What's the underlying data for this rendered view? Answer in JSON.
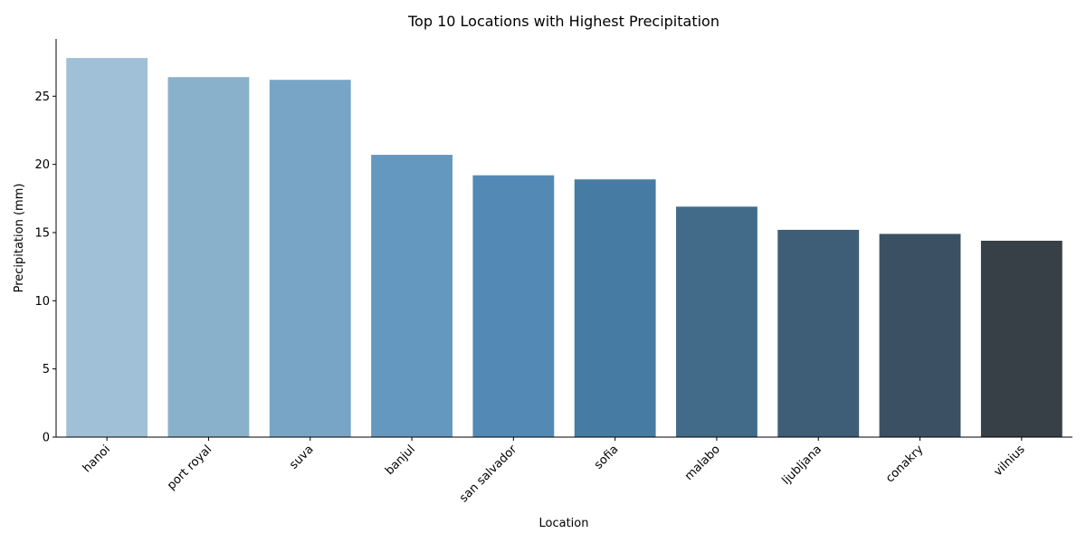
{
  "chart_data": {
    "type": "bar",
    "title": "Top 10 Locations with Highest Precipitation",
    "xlabel": "Location",
    "ylabel": "Precipitation (mm)",
    "categories": [
      "hanoi",
      "port royal",
      "suva",
      "banjul",
      "san salvador",
      "sofia",
      "malabo",
      "ljubljana",
      "conakry",
      "vilnius"
    ],
    "values": [
      27.8,
      26.4,
      26.2,
      20.7,
      19.2,
      18.9,
      16.9,
      15.2,
      14.9,
      14.4
    ],
    "colors": [
      "#9fc0d6",
      "#8ab1cc",
      "#78a5c6",
      "#6598be",
      "#538ab5",
      "#467ca3",
      "#426b8a",
      "#3e5d77",
      "#3b5063",
      "#373f47"
    ],
    "ylim": [
      0,
      29.2
    ],
    "yticks": [
      0,
      5,
      10,
      15,
      20,
      25
    ],
    "ytick_labels": [
      "0",
      "5",
      "10",
      "15",
      "20",
      "25"
    ],
    "grid": false,
    "legend": "none"
  }
}
